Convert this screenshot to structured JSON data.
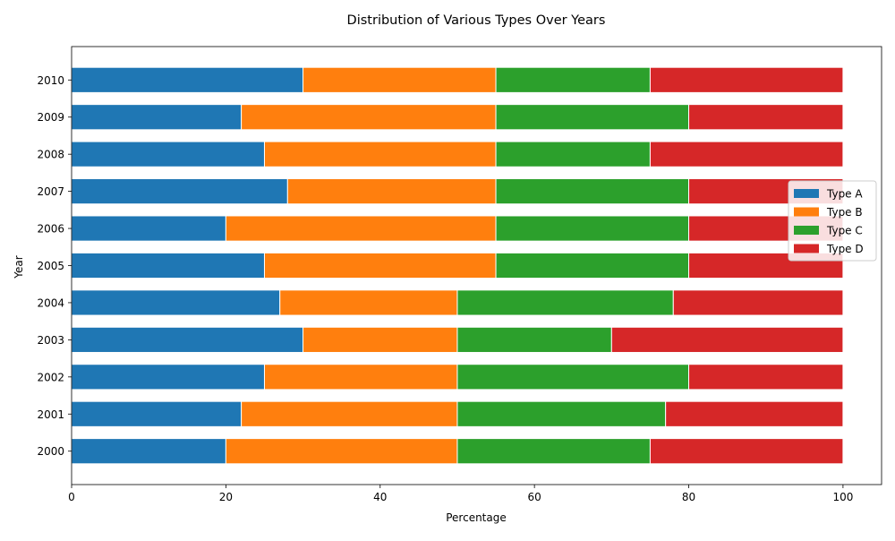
{
  "chart_data": {
    "type": "bar",
    "orientation": "horizontal",
    "stacked": true,
    "title": "Distribution of Various Types Over Years",
    "xlabel": "Percentage",
    "ylabel": "Year",
    "xlim": [
      0,
      105
    ],
    "xticks": [
      0,
      20,
      40,
      60,
      80,
      100
    ],
    "categories": [
      "2000",
      "2001",
      "2002",
      "2003",
      "2004",
      "2005",
      "2006",
      "2007",
      "2008",
      "2009",
      "2010"
    ],
    "series": [
      {
        "name": "Type A",
        "color": "#1f77b4",
        "values": [
          20,
          22,
          25,
          30,
          27,
          25,
          20,
          28,
          25,
          22,
          30
        ]
      },
      {
        "name": "Type B",
        "color": "#ff7f0e",
        "values": [
          30,
          28,
          25,
          20,
          23,
          30,
          35,
          27,
          30,
          33,
          25
        ]
      },
      {
        "name": "Type C",
        "color": "#2ca02c",
        "values": [
          25,
          27,
          30,
          20,
          28,
          25,
          25,
          25,
          20,
          25,
          20
        ]
      },
      {
        "name": "Type D",
        "color": "#d62728",
        "values": [
          25,
          23,
          20,
          30,
          22,
          20,
          20,
          20,
          25,
          20,
          25
        ]
      }
    ],
    "grid": false,
    "legend": "center-right"
  }
}
